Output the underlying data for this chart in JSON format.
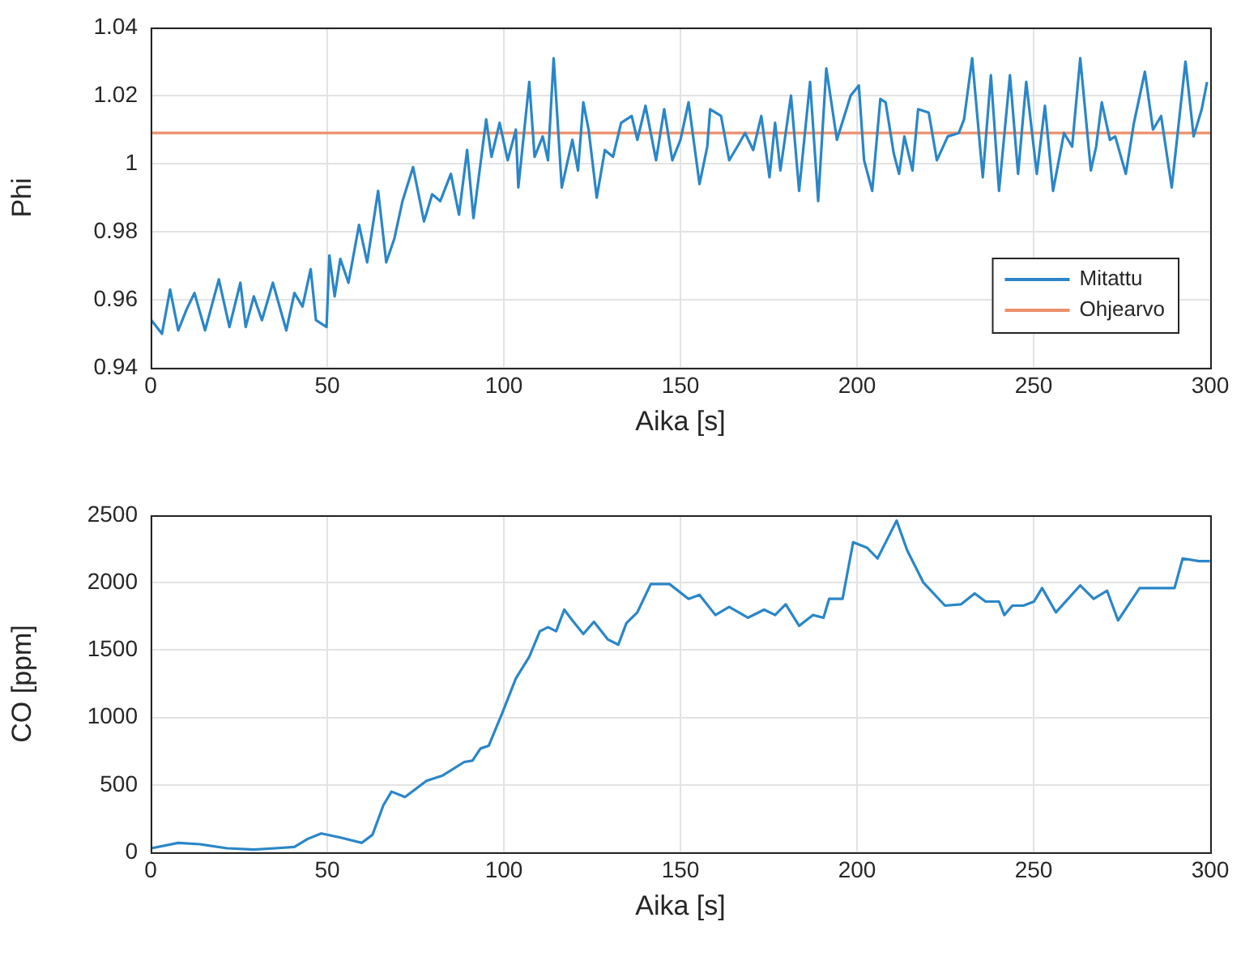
{
  "chart_data": [
    {
      "type": "line",
      "xlabel": "Aika [s]",
      "ylabel": "Phi",
      "xlim": [
        0,
        300
      ],
      "xticks": [
        0,
        50,
        100,
        150,
        200,
        250,
        300
      ],
      "ylim": [
        0.94,
        1.04
      ],
      "yticks": [
        0.94,
        0.96,
        0.98,
        1,
        1.02,
        1.04
      ],
      "grid": true,
      "legend": "bottom right",
      "series": [
        {
          "name": "Mitattu",
          "color": "#2a86c8",
          "x": [
            0.2,
            3.2,
            5.5,
            7.8,
            10.1,
            12.4,
            15.4,
            19.3,
            22.3,
            25.4,
            26.9,
            29.2,
            31.5,
            34.6,
            38.4,
            40.7,
            43,
            45.3,
            46.8,
            49.8,
            50.6,
            52.1,
            53.7,
            56,
            59,
            61.3,
            64.4,
            66.7,
            69,
            71.3,
            74.3,
            77.4,
            79.7,
            82,
            85,
            87.3,
            89.6,
            91.4,
            95,
            96.5,
            98.8,
            101.1,
            103.4,
            104.1,
            107.2,
            108.7,
            111,
            112.5,
            114.1,
            116.4,
            119.4,
            121,
            122.5,
            124,
            126.3,
            128.6,
            130.9,
            133.2,
            136.2,
            137.8,
            140.1,
            143.1,
            145.4,
            147.7,
            150,
            152.3,
            155.4,
            157.6,
            158.4,
            161.5,
            163.8,
            166.1,
            168.3,
            170.6,
            172.9,
            175.2,
            176.8,
            178.3,
            181.3,
            183.6,
            186.7,
            189,
            191.3,
            194.3,
            198.2,
            200.5,
            202,
            204.3,
            206.6,
            208.1,
            210.4,
            211.9,
            213.4,
            215.7,
            217.3,
            220.3,
            222.6,
            225.7,
            228.8,
            230.3,
            232.6,
            235.6,
            237.9,
            240.2,
            243.3,
            245.6,
            247.9,
            250.9,
            253.2,
            255.5,
            258.6,
            260.9,
            263.2,
            266.2,
            267.7,
            269.3,
            271.6,
            273.1,
            276.1,
            278.4,
            281.5,
            283.8,
            286.1,
            289.1,
            293,
            295.3,
            297.6,
            299.1
          ],
          "values": [
            0.954,
            0.95,
            0.963,
            0.951,
            0.957,
            0.962,
            0.951,
            0.966,
            0.952,
            0.965,
            0.952,
            0.961,
            0.954,
            0.965,
            0.951,
            0.962,
            0.958,
            0.969,
            0.954,
            0.952,
            0.973,
            0.961,
            0.972,
            0.965,
            0.982,
            0.971,
            0.992,
            0.971,
            0.978,
            0.989,
            0.999,
            0.983,
            0.991,
            0.989,
            0.997,
            0.985,
            1.004,
            0.984,
            1.013,
            1.002,
            1.012,
            1.001,
            1.01,
            0.993,
            1.024,
            1.002,
            1.008,
            1.001,
            1.031,
            0.993,
            1.007,
            0.998,
            1.018,
            1.01,
            0.99,
            1.004,
            1.002,
            1.012,
            1.014,
            1.007,
            1.017,
            1.001,
            1.016,
            1.001,
            1.007,
            1.018,
            0.994,
            1.005,
            1.016,
            1.014,
            1.001,
            1.005,
            1.009,
            1.004,
            1.014,
            0.996,
            1.012,
            0.998,
            1.02,
            0.992,
            1.024,
            0.989,
            1.028,
            1.007,
            1.02,
            1.023,
            1.001,
            0.992,
            1.019,
            1.018,
            1.003,
            0.997,
            1.008,
            0.998,
            1.016,
            1.015,
            1.001,
            1.008,
            1.009,
            1.013,
            1.031,
            0.996,
            1.026,
            0.992,
            1.026,
            0.997,
            1.024,
            0.997,
            1.017,
            0.992,
            1.009,
            1.005,
            1.031,
            0.998,
            1.005,
            1.018,
            1.007,
            1.008,
            0.997,
            1.012,
            1.027,
            1.01,
            1.014,
            0.993,
            1.03,
            1.008,
            1.016,
            1.024
          ]
        },
        {
          "name": "Ohjearvo",
          "color": "#eb8f6a",
          "x": [
            0,
            300
          ],
          "values": [
            1.009,
            1.009
          ]
        }
      ]
    },
    {
      "type": "line",
      "xlabel": "Aika [s]",
      "ylabel": "CO [ppm]",
      "xlim": [
        0,
        300
      ],
      "xticks": [
        0,
        50,
        100,
        150,
        200,
        250,
        300
      ],
      "ylim": [
        0,
        2500
      ],
      "yticks": [
        0,
        500,
        1000,
        1500,
        2000,
        2500
      ],
      "grid": true,
      "series": [
        {
          "color": "#2a86c8",
          "x": [
            0.2,
            7.8,
            13.9,
            21.6,
            29.2,
            35.3,
            40.7,
            44.5,
            48.3,
            53.7,
            59.8,
            62.8,
            65.9,
            68.2,
            72,
            78.1,
            82.7,
            88.8,
            91.1,
            93.4,
            95.7,
            99.5,
            103.4,
            107.2,
            110.2,
            112.5,
            114.8,
            117.1,
            119.4,
            122.5,
            125.5,
            129.4,
            132.4,
            134.7,
            137.8,
            141.6,
            145.4,
            146.9,
            152.3,
            155.4,
            159.9,
            163.8,
            169.1,
            173.7,
            176.8,
            179.8,
            183.6,
            187.5,
            190.5,
            192.1,
            195.9,
            198.9,
            202.8,
            205.8,
            208.9,
            211.2,
            214.2,
            218.8,
            224.9,
            229.5,
            233.3,
            236.4,
            240.2,
            241.7,
            244,
            247.1,
            250.1,
            252.4,
            256.3,
            263.2,
            267,
            270.8,
            273.9,
            280,
            286.1,
            289.9,
            292.2,
            296.8,
            299.9
          ],
          "values": [
            30,
            70,
            60,
            30,
            20,
            30,
            40,
            100,
            140,
            110,
            70,
            130,
            350,
            450,
            410,
            530,
            570,
            670,
            680,
            770,
            790,
            1030,
            1290,
            1450,
            1640,
            1670,
            1640,
            1800,
            1720,
            1620,
            1710,
            1580,
            1540,
            1700,
            1780,
            1990,
            1990,
            1990,
            1880,
            1910,
            1760,
            1820,
            1740,
            1800,
            1760,
            1840,
            1680,
            1760,
            1740,
            1880,
            1880,
            2300,
            2260,
            2180,
            2340,
            2460,
            2240,
            2000,
            1830,
            1840,
            1920,
            1860,
            1860,
            1760,
            1830,
            1830,
            1860,
            1960,
            1780,
            1980,
            1880,
            1940,
            1720,
            1960,
            1960,
            1960,
            2180,
            2160,
            2160
          ]
        }
      ]
    }
  ]
}
